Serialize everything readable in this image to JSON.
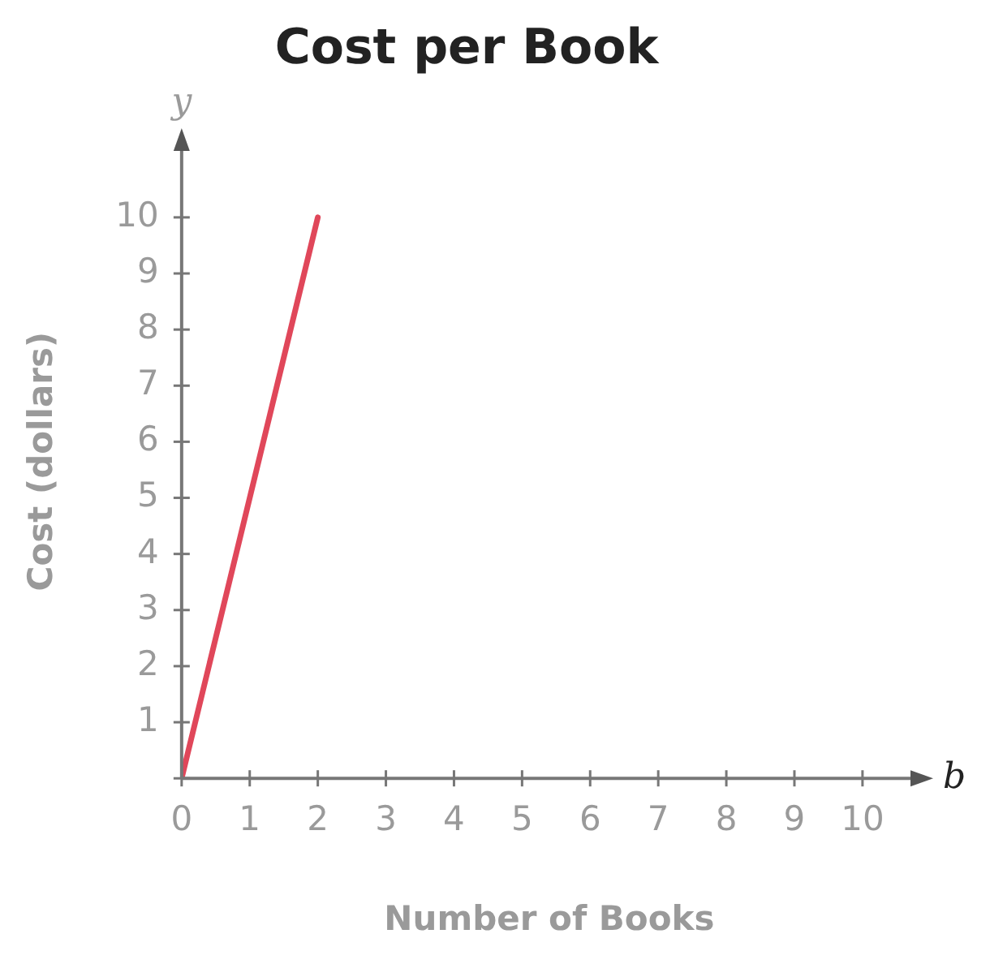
{
  "chart_data": {
    "type": "line",
    "title": "Cost per Book",
    "xlabel": "Number of Books",
    "ylabel": "Cost (dollars)",
    "annotations": [
      "y",
      "b"
    ],
    "x": [
      0,
      2
    ],
    "series": [
      {
        "color": "#e0475a",
        "values": [
          0,
          10
        ]
      }
    ],
    "xlim": [
      0,
      10.8
    ],
    "xticks": [
      0,
      1,
      2,
      3,
      4,
      5,
      6,
      7,
      8,
      9,
      10
    ],
    "ylim": [
      0,
      11.3
    ],
    "yticks": [
      {
        "value": 0,
        "label": null
      },
      1,
      2,
      3,
      4,
      5,
      6,
      7,
      8,
      9,
      10
    ],
    "grid": false,
    "legend": false,
    "marker": "none",
    "line_style": "solid"
  }
}
